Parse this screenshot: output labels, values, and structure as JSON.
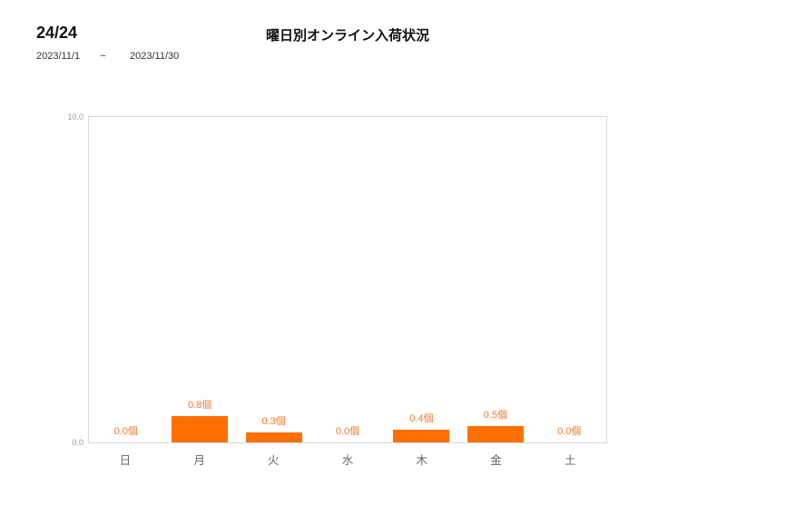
{
  "header": {
    "count": "24/24",
    "date_from": "2023/11/1",
    "tilde": "~",
    "date_to": "2023/11/30"
  },
  "chart_data": {
    "type": "bar",
    "title": "曜日別オンライン入荷状況",
    "categories": [
      "日",
      "月",
      "火",
      "水",
      "木",
      "金",
      "土"
    ],
    "values": [
      0.0,
      0.8,
      0.3,
      0.0,
      0.4,
      0.5,
      0.0
    ],
    "value_labels": [
      "0.0個",
      "0.8個",
      "0.3個",
      "0.0個",
      "0.4個",
      "0.5個",
      "0.0個"
    ],
    "unit": "個",
    "xlabel": "",
    "ylabel": "",
    "ylim": [
      0,
      10
    ],
    "ytick_labels": [
      "0.0",
      "10.0"
    ],
    "grid": false,
    "legend": "none",
    "bar_color": "#ff6f00",
    "value_label_color": "#f4772e",
    "plot_border_color": "#d9d9d9"
  }
}
